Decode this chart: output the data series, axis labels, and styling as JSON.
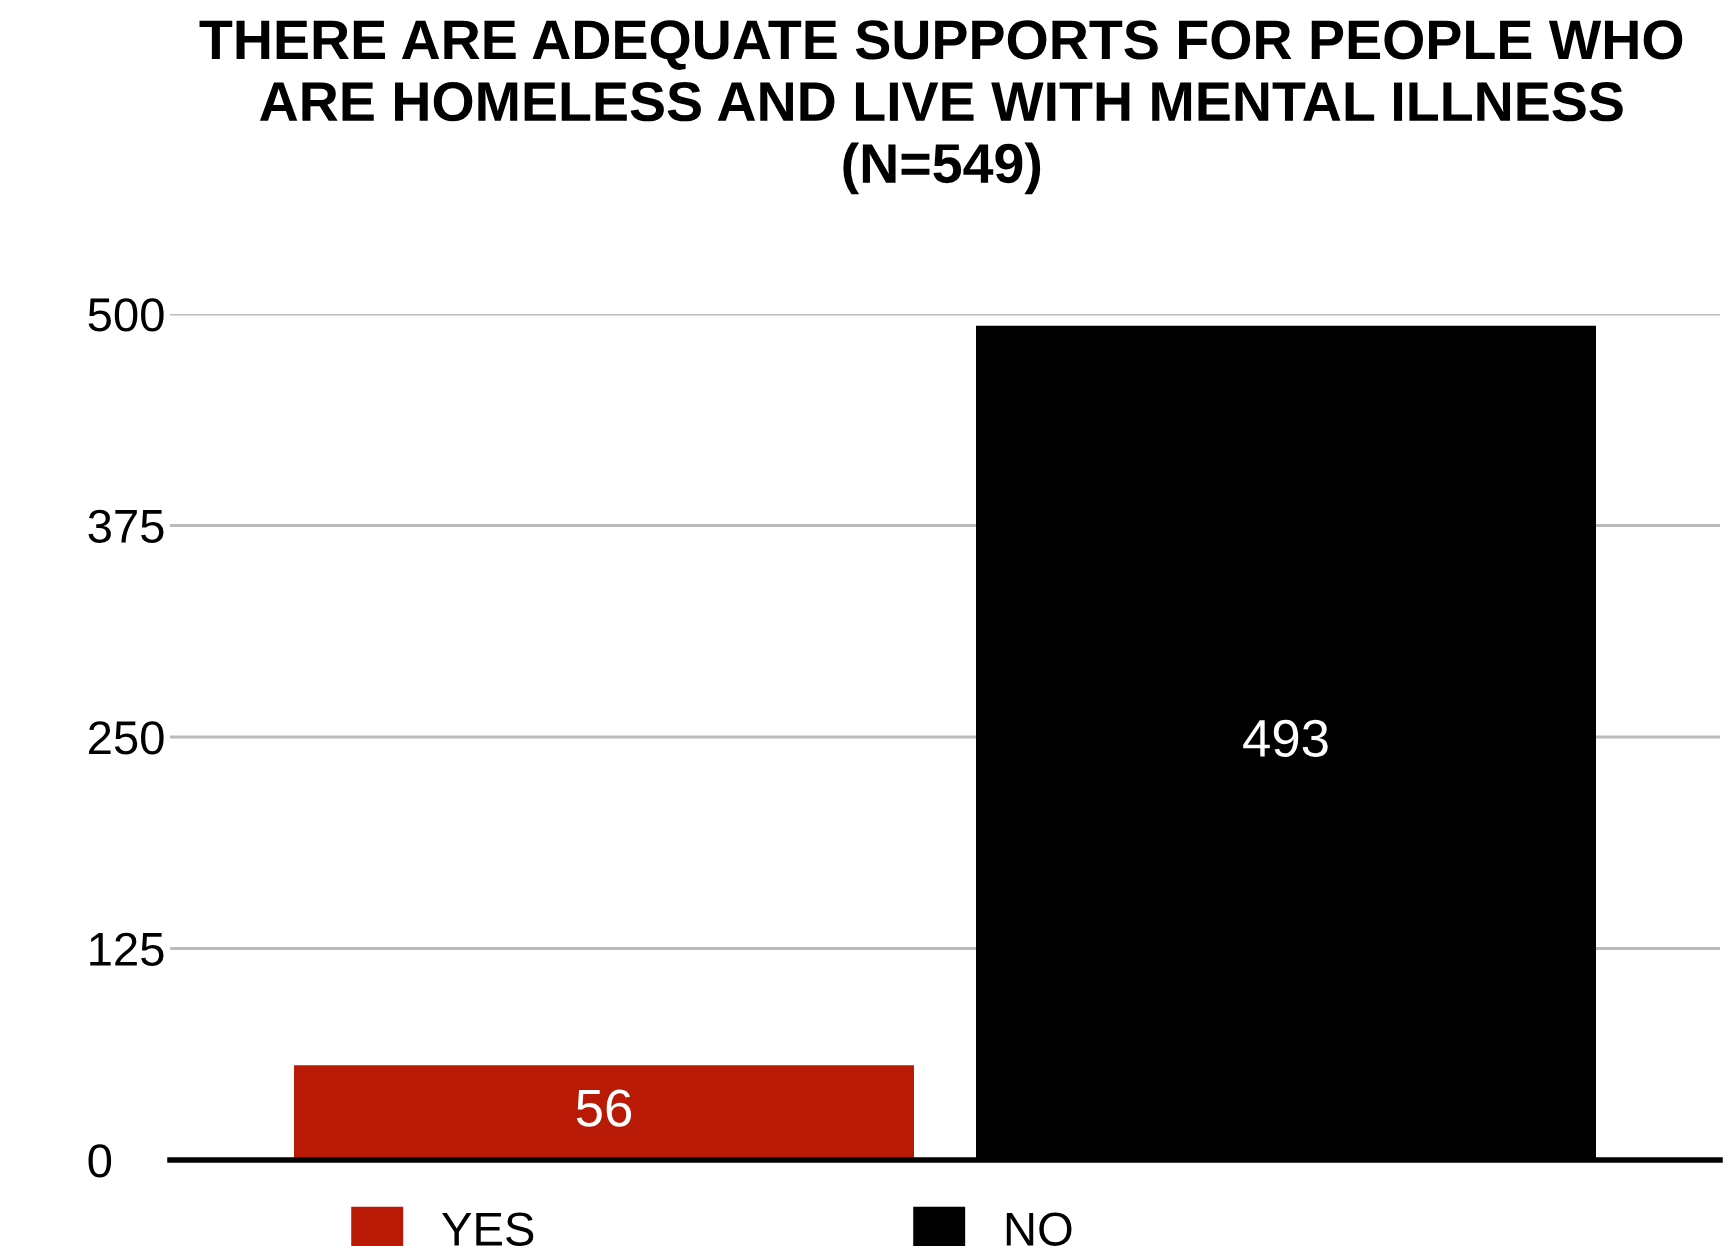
{
  "chart_data": {
    "type": "bar",
    "title": "THERE ARE ADEQUATE SUPPORTS FOR PEOPLE WHO ARE HOMELESS AND LIVE WITH MENTAL ILLNESS (N=549)",
    "categories": [
      null
    ],
    "series": [
      {
        "name": "YES",
        "color": "#b81a05",
        "values": [
          56
        ]
      },
      {
        "name": "NO",
        "color": "#000000",
        "values": [
          493
        ]
      }
    ],
    "ylim": [
      0,
      500
    ],
    "yticks": [
      0,
      125,
      250,
      375,
      500
    ],
    "grid": "y",
    "legend": "bottom",
    "data_labels": true
  }
}
